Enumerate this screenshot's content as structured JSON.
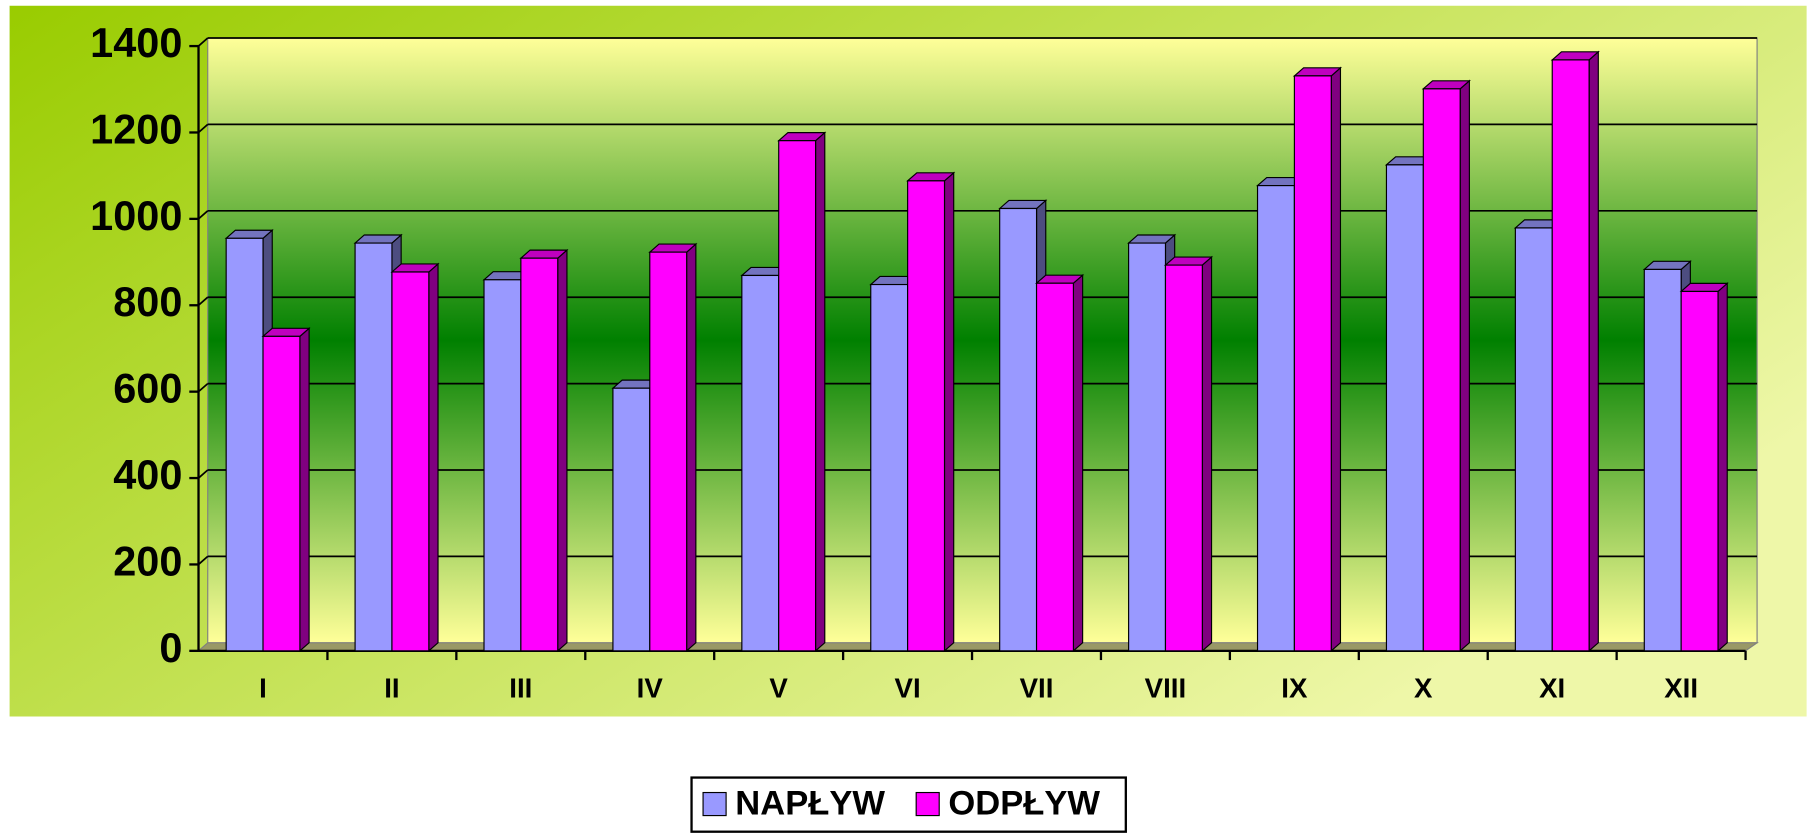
{
  "chart_data": {
    "type": "bar3d",
    "categories": [
      "I",
      "II",
      "III",
      "IV",
      "V",
      "VI",
      "VII",
      "VIII",
      "IX",
      "X",
      "XI",
      "XII"
    ],
    "series": [
      {
        "name": "NAPŁYW",
        "color": "#9999ff",
        "values": [
          955,
          944,
          859,
          608,
          869,
          848,
          1024,
          944,
          1077,
          1125,
          979,
          883
        ]
      },
      {
        "name": "ODPŁYW",
        "color": "#ff00ff",
        "values": [
          728,
          877,
          909,
          923,
          1181,
          1088,
          851,
          893,
          1331,
          1301,
          1368,
          832
        ]
      }
    ],
    "ylim": [
      0,
      1400
    ],
    "yticks": [
      0,
      200,
      400,
      600,
      800,
      1000,
      1200,
      1400
    ],
    "grid": true,
    "legend": "bottom"
  }
}
